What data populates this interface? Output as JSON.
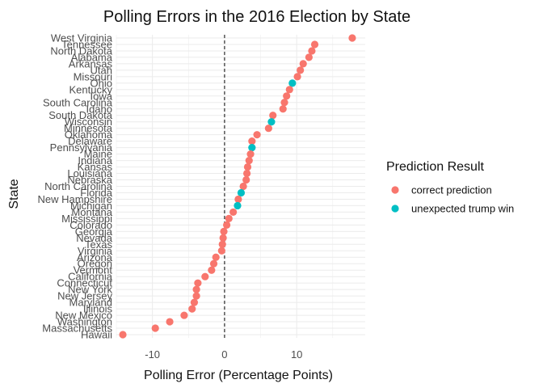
{
  "chart_data": {
    "type": "scatter",
    "title": "Polling Errors in the 2016 Election by State",
    "xlabel": "Polling Error (Percentage Points)",
    "ylabel": "State",
    "xlim": [
      -15,
      19.5
    ],
    "x_ticks": [
      -10,
      0,
      10
    ],
    "reference_line_x": 0,
    "grid": true,
    "legend": {
      "title": "Prediction Result",
      "placement": "right",
      "entries": [
        {
          "key": "correct",
          "label": "correct prediction",
          "color": "#F8766D"
        },
        {
          "key": "unexpected",
          "label": "unexpected trump win",
          "color": "#00BFC4"
        }
      ]
    },
    "points": [
      {
        "state": "West Virginia",
        "x": 17.7,
        "group": "correct"
      },
      {
        "state": "Tennessee",
        "x": 12.5,
        "group": "correct"
      },
      {
        "state": "North Dakota",
        "x": 12.1,
        "group": "correct"
      },
      {
        "state": "Alabama",
        "x": 11.7,
        "group": "correct"
      },
      {
        "state": "Arkansas",
        "x": 10.9,
        "group": "correct"
      },
      {
        "state": "Utah",
        "x": 10.5,
        "group": "correct"
      },
      {
        "state": "Missouri",
        "x": 10.1,
        "group": "correct"
      },
      {
        "state": "Ohio",
        "x": 9.4,
        "group": "unexpected"
      },
      {
        "state": "Kentucky",
        "x": 9.0,
        "group": "correct"
      },
      {
        "state": "Iowa",
        "x": 8.6,
        "group": "correct"
      },
      {
        "state": "South Carolina",
        "x": 8.3,
        "group": "correct"
      },
      {
        "state": "Idaho",
        "x": 8.1,
        "group": "correct"
      },
      {
        "state": "South Dakota",
        "x": 6.7,
        "group": "correct"
      },
      {
        "state": "Wisconsin",
        "x": 6.5,
        "group": "unexpected"
      },
      {
        "state": "Minnesota",
        "x": 6.1,
        "group": "correct"
      },
      {
        "state": "Oklahoma",
        "x": 4.5,
        "group": "correct"
      },
      {
        "state": "Delaware",
        "x": 3.8,
        "group": "correct"
      },
      {
        "state": "Pennsylvania",
        "x": 3.8,
        "group": "unexpected"
      },
      {
        "state": "Maine",
        "x": 3.6,
        "group": "correct"
      },
      {
        "state": "Indiana",
        "x": 3.4,
        "group": "correct"
      },
      {
        "state": "Kansas",
        "x": 3.2,
        "group": "correct"
      },
      {
        "state": "Louisiana",
        "x": 3.1,
        "group": "correct"
      },
      {
        "state": "Nebraska",
        "x": 3.0,
        "group": "correct"
      },
      {
        "state": "North Carolina",
        "x": 2.6,
        "group": "correct"
      },
      {
        "state": "Florida",
        "x": 2.3,
        "group": "unexpected"
      },
      {
        "state": "New Hampshire",
        "x": 1.9,
        "group": "correct"
      },
      {
        "state": "Michigan",
        "x": 1.8,
        "group": "unexpected"
      },
      {
        "state": "Montana",
        "x": 1.2,
        "group": "correct"
      },
      {
        "state": "Mississippi",
        "x": 0.6,
        "group": "correct"
      },
      {
        "state": "Colorado",
        "x": 0.3,
        "group": "correct"
      },
      {
        "state": "Georgia",
        "x": -0.1,
        "group": "correct"
      },
      {
        "state": "Nevada",
        "x": -0.2,
        "group": "correct"
      },
      {
        "state": "Texas",
        "x": -0.3,
        "group": "correct"
      },
      {
        "state": "Virginia",
        "x": -0.4,
        "group": "correct"
      },
      {
        "state": "Arizona",
        "x": -1.2,
        "group": "correct"
      },
      {
        "state": "Oregon",
        "x": -1.5,
        "group": "correct"
      },
      {
        "state": "Vermont",
        "x": -1.8,
        "group": "correct"
      },
      {
        "state": "California",
        "x": -2.7,
        "group": "correct"
      },
      {
        "state": "Connecticut",
        "x": -3.7,
        "group": "correct"
      },
      {
        "state": "New York",
        "x": -3.9,
        "group": "correct"
      },
      {
        "state": "New Jersey",
        "x": -3.9,
        "group": "correct"
      },
      {
        "state": "Maryland",
        "x": -4.2,
        "group": "correct"
      },
      {
        "state": "Illinois",
        "x": -4.5,
        "group": "correct"
      },
      {
        "state": "New Mexico",
        "x": -5.6,
        "group": "correct"
      },
      {
        "state": "Washington",
        "x": -7.6,
        "group": "correct"
      },
      {
        "state": "Massachusetts",
        "x": -9.6,
        "group": "correct"
      },
      {
        "state": "Hawaii",
        "x": -14.1,
        "group": "correct"
      }
    ]
  }
}
